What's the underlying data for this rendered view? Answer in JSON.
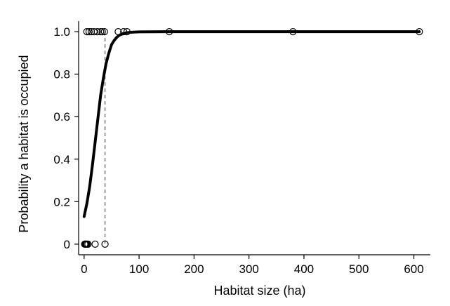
{
  "chart_data": {
    "type": "scatter",
    "title": "",
    "xlabel": "Habitat size (ha)",
    "ylabel": "Probability a habitat is occupied",
    "xlim": [
      -10,
      630
    ],
    "ylim": [
      -0.05,
      1.05
    ],
    "x_ticks": [
      0,
      100,
      200,
      300,
      400,
      500,
      600
    ],
    "y_ticks": [
      0,
      0.2,
      0.4,
      0.6,
      0.8,
      1.0
    ],
    "x_tick_labels": [
      "0",
      "100",
      "200",
      "300",
      "400",
      "500",
      "600"
    ],
    "y_tick_labels": [
      "0",
      "0.2",
      "0.4",
      "0.6",
      "0.8",
      "1.0"
    ],
    "grid": false,
    "observations": {
      "occupied_x": [
        5,
        9,
        13,
        18,
        24,
        30,
        33,
        37,
        62,
        72,
        78,
        155,
        380,
        610
      ],
      "unoccupied_x": [
        1,
        2,
        3,
        4,
        5,
        7,
        20,
        38
      ]
    },
    "fitted_curve": {
      "type": "logistic",
      "x": [
        0,
        5,
        10,
        15,
        20,
        25,
        30,
        35,
        40,
        45,
        50,
        55,
        60,
        65,
        70,
        75,
        80,
        90,
        100,
        150,
        200,
        300,
        400,
        500,
        600,
        610
      ],
      "y": [
        0.13,
        0.19,
        0.27,
        0.37,
        0.48,
        0.59,
        0.7,
        0.78,
        0.85,
        0.9,
        0.94,
        0.96,
        0.975,
        0.985,
        0.99,
        0.994,
        0.996,
        0.998,
        0.999,
        1.0,
        1.0,
        1.0,
        1.0,
        1.0,
        1.0,
        1.0
      ]
    },
    "threshold_x": 38
  }
}
